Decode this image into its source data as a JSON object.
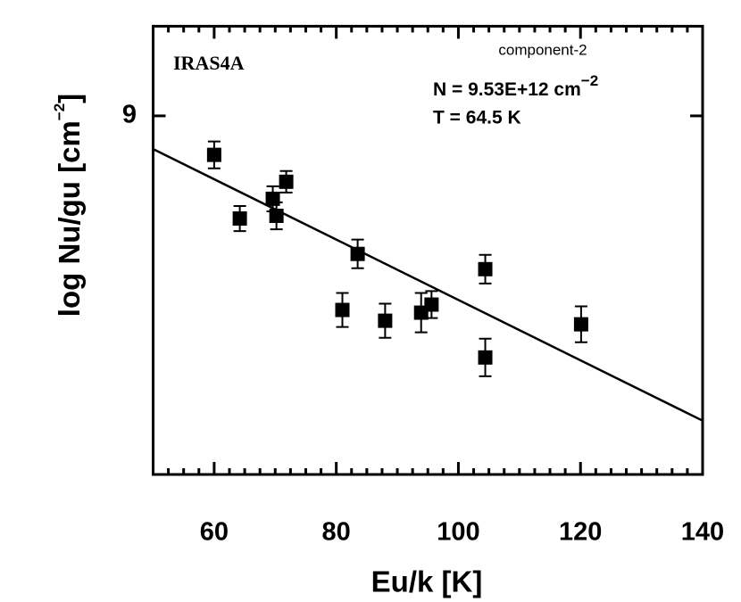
{
  "chart_data": {
    "type": "scatter",
    "xlabel": "Eu/k [K]",
    "ylabel": "log Nu/gu [cm",
    "ylabel_sup": "−2",
    "ylabel_end": "]",
    "annotations": {
      "source": "IRAS4A",
      "component": "component-2",
      "column": "N = 9.53E+12 cm",
      "column_sup": "−2",
      "temperature": "T = 64.5 K"
    },
    "xlim": [
      50,
      140
    ],
    "ylim": [
      8.2,
      9.2
    ],
    "xticks": [
      60,
      80,
      100,
      120,
      140
    ],
    "xminorticks": [
      52.5,
      55,
      57.5,
      62.5,
      65,
      67.5,
      70,
      72.5,
      75,
      77.5,
      82.5,
      85,
      87.5,
      90,
      92.5,
      95,
      97.5,
      102.5,
      105,
      107.5,
      110,
      112.5,
      115,
      117.5,
      122.5,
      125,
      127.5,
      130,
      132.5,
      135,
      137.5
    ],
    "yticks": [
      9
    ],
    "color": "#000000",
    "x": [
      60.0,
      64.2,
      69.6,
      70.2,
      71.8,
      83.5,
      81.0,
      88.0,
      93.9,
      95.6,
      104.4,
      104.4,
      120.1
    ],
    "values": [
      8.913,
      8.771,
      8.815,
      8.777,
      8.853,
      8.692,
      8.567,
      8.543,
      8.561,
      8.579,
      8.658,
      8.461,
      8.535
    ],
    "errors": [
      0.03,
      0.028,
      0.028,
      0.03,
      0.024,
      0.032,
      0.038,
      0.038,
      0.044,
      0.03,
      0.032,
      0.042,
      0.04
    ],
    "fit": {
      "x": [
        50,
        140
      ],
      "y": [
        8.926,
        8.32
      ]
    }
  }
}
